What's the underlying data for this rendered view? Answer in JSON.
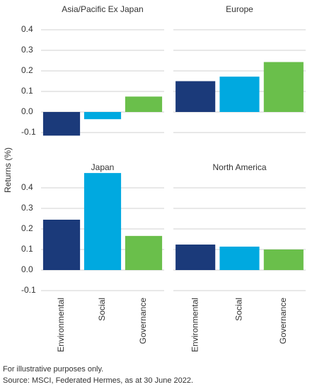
{
  "y_label": "Returns (%)",
  "footnotes": [
    "For illustrative purposes only.",
    "Source: MSCI, Federated Hermes, as at 30 June 2022."
  ],
  "chart_data": [
    {
      "type": "bar",
      "title": "Asia/Pacific Ex Japan",
      "categories": [
        null,
        null,
        null
      ],
      "values": [
        -0.115,
        -0.035,
        0.075
      ],
      "colors": [
        "#1b3a7a",
        "#00a9e0",
        "#6abf4b"
      ],
      "ylim": [
        -0.1,
        0.48
      ],
      "yticks": [
        -0.1,
        {
          "value": 0,
          "label": "0.0"
        },
        0.1,
        0.2,
        0.3,
        0.4
      ],
      "grid": true
    },
    {
      "type": "bar",
      "title": "Europe",
      "categories": [
        null,
        null,
        null
      ],
      "values": [
        0.15,
        0.172,
        0.243
      ],
      "colors": [
        "#1b3a7a",
        "#00a9e0",
        "#6abf4b"
      ],
      "ylim": [
        -0.1,
        0.48
      ],
      "yticks": [
        -0.1,
        0,
        0.1,
        0.2,
        0.3,
        0.4
      ],
      "grid": true
    },
    {
      "type": "bar",
      "title": "Japan",
      "categories": [
        "Environmental",
        "Social",
        "Governance"
      ],
      "values": [
        0.245,
        0.472,
        0.166
      ],
      "colors": [
        "#1b3a7a",
        "#00a9e0",
        "#6abf4b"
      ],
      "ylim": [
        -0.1,
        0.48
      ],
      "yticks": [
        -0.1,
        {
          "value": 0,
          "label": "0.0"
        },
        0.1,
        0.2,
        0.3,
        0.4
      ],
      "grid": true
    },
    {
      "type": "bar",
      "title": "North America",
      "categories": [
        "Environmental",
        "Social",
        "Governance"
      ],
      "values": [
        0.124,
        0.114,
        0.1
      ],
      "colors": [
        "#1b3a7a",
        "#00a9e0",
        "#6abf4b"
      ],
      "ylim": [
        -0.1,
        0.48
      ],
      "yticks": [
        -0.1,
        0,
        0.1,
        0.2,
        0.3,
        0.4
      ],
      "grid": true
    }
  ]
}
